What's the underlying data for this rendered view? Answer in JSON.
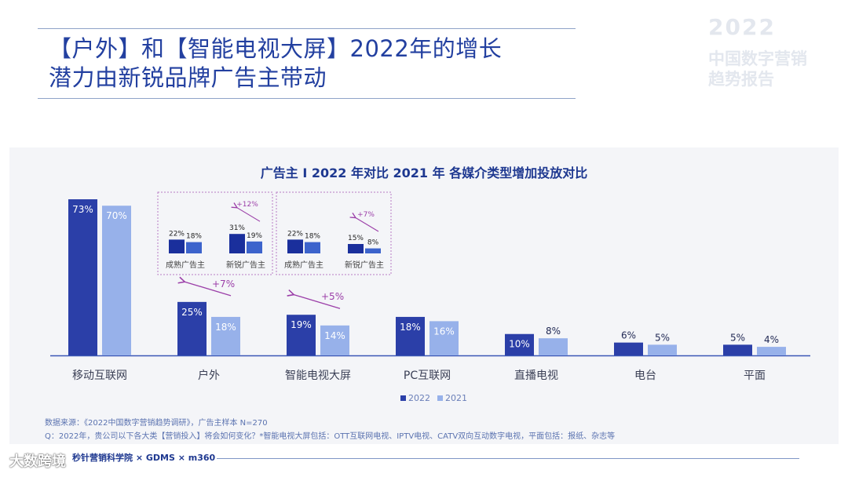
{
  "header": {
    "title_line1": "【户外】和【智能电视大屏】2022年的增长",
    "title_line2": "潜力由新锐品牌广告主带动",
    "logo_year": "2022",
    "logo_sub_line1": "中国数字营销",
    "logo_sub_line2": "趋势报告"
  },
  "chart_data": {
    "type": "bar",
    "title": "广告主 I 2022 年对比 2021 年 各媒介类型增加投放对比",
    "categories": [
      "移动互联网",
      "户外",
      "智能电视大屏",
      "PC互联网",
      "直播电视",
      "电台",
      "平面"
    ],
    "series": [
      {
        "name": "2022",
        "color": "#2b3fa8",
        "values": [
          73,
          25,
          19,
          18,
          10,
          6,
          5
        ],
        "labels": [
          "73%",
          "25%",
          "19%",
          "18%",
          "10%",
          "6%",
          "5%"
        ]
      },
      {
        "name": "2021",
        "color": "#97b1ea",
        "values": [
          70,
          18,
          14,
          16,
          8,
          5,
          4
        ],
        "labels": [
          "70%",
          "18%",
          "14%",
          "16%",
          "8%",
          "5%",
          "4%"
        ]
      }
    ],
    "ylim": [
      0,
      80
    ],
    "annotations": [
      {
        "category": "户外",
        "text": "+7%"
      },
      {
        "category": "智能电视大屏",
        "text": "+5%"
      }
    ],
    "insets": [
      {
        "parent": "户外",
        "groups": [
          {
            "label": "成熟广告主",
            "values": [
              22,
              18
            ],
            "labels": [
              "22%",
              "18%"
            ],
            "delta": ""
          },
          {
            "label": "新锐广告主",
            "values": [
              31,
              19
            ],
            "labels": [
              "31%",
              "19%"
            ],
            "delta": "+12%"
          }
        ]
      },
      {
        "parent": "智能电视大屏",
        "groups": [
          {
            "label": "成熟广告主",
            "values": [
              22,
              18
            ],
            "labels": [
              "22%",
              "18%"
            ],
            "delta": ""
          },
          {
            "label": "新锐广告主",
            "values": [
              15,
              8
            ],
            "labels": [
              "15%",
              "8%"
            ],
            "delta": "+7%"
          }
        ]
      }
    ],
    "inset_colors": [
      "#1a2f9c",
      "#3c63cc"
    ],
    "legend": [
      {
        "label": "2022",
        "color": "#2b3fa8"
      },
      {
        "label": "2021",
        "color": "#97b1ea"
      }
    ],
    "accent_color": "#9b3ea8"
  },
  "footer": {
    "source": "数据来源：《2022中国数字营销趋势调研》，广告主样本 N=270",
    "question": "Q：2022年，贵公司以下各大类【营销投入】将会如何变化？*智能电视大屏包括：OTT互联网电视、IPTV电视、CATV双向互动数字电视，平面包括：报纸、杂志等",
    "partners": "秒针营销科学院 × GDMS × m360",
    "watermark": "大数跨境"
  }
}
